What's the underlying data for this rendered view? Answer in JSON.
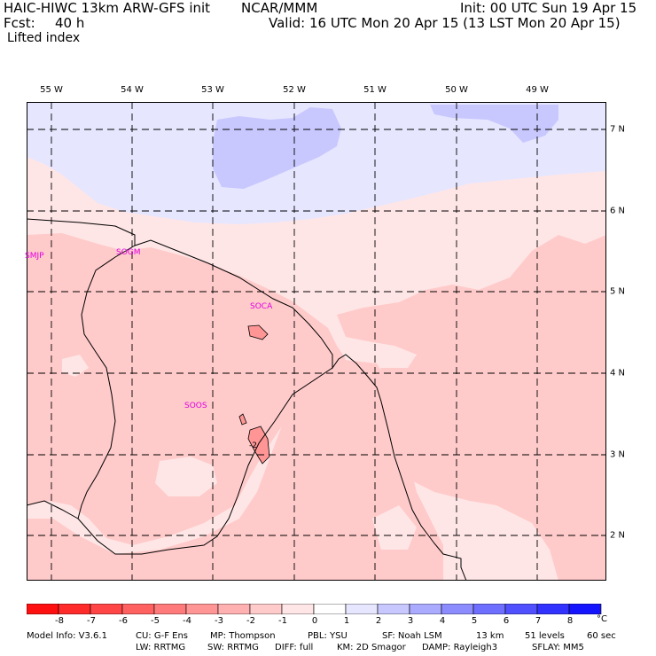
{
  "header": {
    "title_left": "HAIC-HIWC 13km ARW-GFS init",
    "org": "NCAR/MMM",
    "init": "Init: 00 UTC Sun 19 Apr 15",
    "fcst_label": "Fcst:",
    "fcst_value": "40 h",
    "valid": "Valid: 16 UTC Mon 20 Apr 15 (13 LST Mon 20 Apr 15)",
    "field": "Lifted index"
  },
  "map": {
    "lon_labels": [
      "55 W",
      "54 W",
      "53 W",
      "52 W",
      "51 W",
      "50 W",
      "49 W"
    ],
    "lat_labels": [
      "7 N",
      "6 N",
      "5 N",
      "4 N",
      "3 N",
      "2 N"
    ],
    "stations": [
      "SMJP",
      "SOGM",
      "SOCA",
      "SOOS"
    ],
    "contour_label": "-2"
  },
  "colorbar": {
    "labels": [
      "-8",
      "-7",
      "-6",
      "-5",
      "-4",
      "-3",
      "-2",
      "-1",
      "0",
      "1",
      "2",
      "3",
      "4",
      "5",
      "6",
      "7",
      "8"
    ],
    "unit": "°C",
    "colors": [
      "#ff1010",
      "#ff2a2a",
      "#ff4545",
      "#ff6060",
      "#ff7b7b",
      "#ff9595",
      "#ffb0b0",
      "#ffcaca",
      "#ffe6e6",
      "#ffffff",
      "#e6e6ff",
      "#c8c8ff",
      "#aaaaff",
      "#8c8cff",
      "#6e6eff",
      "#5050ff",
      "#3232ff",
      "#1414ff"
    ]
  },
  "footer": {
    "line1": [
      "Model Info: V3.6.1",
      "CU: G-F Ens",
      "MP: Thompson",
      "PBL: YSU",
      "SF: Noah LSM",
      "13 km",
      "51 levels",
      "60 sec"
    ],
    "line2": [
      "LW: RRTMG",
      "SW: RRTMG",
      "DIFF: full",
      "KM: 2D Smagor",
      "DAMP: Rayleigh3",
      "SFLAY: MM5"
    ]
  },
  "colors": {
    "light_pink": "#ffe6e6",
    "pink": "#ffcaca",
    "dark_pink": "#ff9595",
    "light_blue": "#e6e6ff",
    "blue": "#c8c8ff"
  }
}
